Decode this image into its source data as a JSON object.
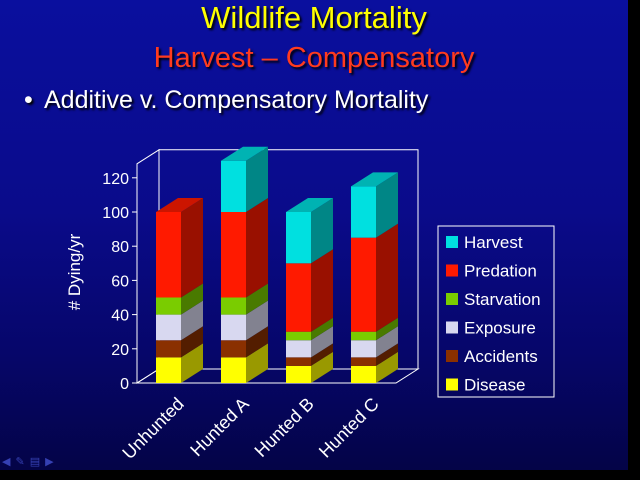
{
  "slide": {
    "title": "Wildlife Mortality",
    "subtitle": "Harvest – Compensatory",
    "bullet": "Additive v. Compensatory Mortality"
  },
  "colors": {
    "background": "#0a0b8a",
    "title": "#ffff00",
    "subtitle": "#ff3b1f"
  },
  "nav_icons": [
    "arrow-left-icon",
    "pen-icon",
    "menu-icon",
    "arrow-right-icon"
  ],
  "chart_data": {
    "type": "bar",
    "stacked": true,
    "three_d": true,
    "ylabel": "# Dying/yr",
    "ylim": [
      0,
      120
    ],
    "yticks": [
      0,
      20,
      40,
      60,
      80,
      100,
      120
    ],
    "categories": [
      "Unhunted",
      "Hunted A",
      "Hunted B",
      "Hunted C"
    ],
    "series": [
      {
        "name": "Disease",
        "color": "#ffff00",
        "values": [
          15,
          15,
          10,
          10
        ]
      },
      {
        "name": "Accidents",
        "color": "#8a3000",
        "values": [
          10,
          10,
          5,
          5
        ]
      },
      {
        "name": "Exposure",
        "color": "#d8d8f0",
        "values": [
          15,
          15,
          10,
          10
        ]
      },
      {
        "name": "Starvation",
        "color": "#7acc00",
        "values": [
          10,
          10,
          5,
          5
        ]
      },
      {
        "name": "Predation",
        "color": "#ff1a00",
        "values": [
          50,
          50,
          40,
          55
        ]
      },
      {
        "name": "Harvest",
        "color": "#00e0e0",
        "values": [
          0,
          30,
          30,
          30
        ]
      }
    ],
    "legend_position": "right",
    "grid": false
  }
}
